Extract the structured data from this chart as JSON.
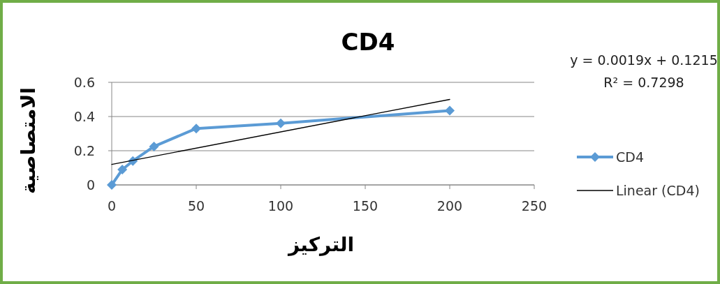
{
  "chart_data": {
    "type": "line",
    "title": "CD4",
    "xlabel": "التركيز",
    "ylabel": "الامتصاصية",
    "x": [
      0,
      6.25,
      12.5,
      25,
      50,
      100,
      200
    ],
    "series": [
      {
        "name": "CD4",
        "color": "#5b9bd5",
        "marker": "diamond",
        "values": [
          0,
          0.09,
          0.14,
          0.225,
          0.33,
          0.36,
          0.435
        ]
      },
      {
        "name": "Linear (CD4)",
        "type": "line",
        "color": "#000000",
        "marker": "none",
        "x": [
          0,
          200
        ],
        "values": [
          0.12,
          0.5
        ]
      }
    ],
    "xlim": [
      0,
      250
    ],
    "xticks": [
      0,
      50,
      100,
      150,
      200,
      250
    ],
    "ylim": [
      0,
      0.6
    ],
    "yticks": [
      0,
      0.2,
      0.4,
      0.6
    ],
    "grid": "y",
    "legend": "right",
    "annotations": [
      "y = 0.0019x + 0.1215",
      "R² = 0.7298"
    ]
  }
}
